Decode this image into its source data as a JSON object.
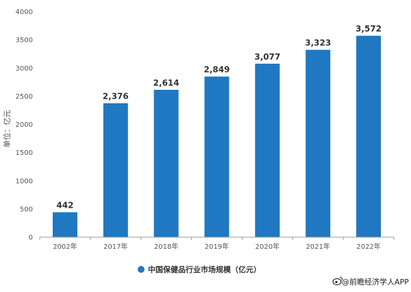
{
  "chart_data": {
    "type": "bar",
    "categories": [
      "2002年",
      "2017年",
      "2018年",
      "2019年",
      "2020年",
      "2021年",
      "2022年"
    ],
    "series": [
      {
        "name": "中国保健品行业市场规模（亿元）",
        "values": [
          442,
          2376,
          2614,
          2849,
          3077,
          3323,
          3572
        ],
        "value_labels": [
          "442",
          "2,376",
          "2,614",
          "2,849",
          "3,077",
          "3,323",
          "3,572"
        ],
        "color": "#1f78c1"
      }
    ],
    "title": "",
    "xlabel": "",
    "ylabel": "单位：亿元",
    "ylim": [
      0,
      4000
    ],
    "yticks": [
      0,
      500,
      1000,
      1500,
      2000,
      2500,
      3000,
      3500,
      4000
    ],
    "grid": false,
    "legend_position": "bottom-center"
  },
  "credit": "@前瞻经济学人APP",
  "credit_icon": "weibo-icon"
}
